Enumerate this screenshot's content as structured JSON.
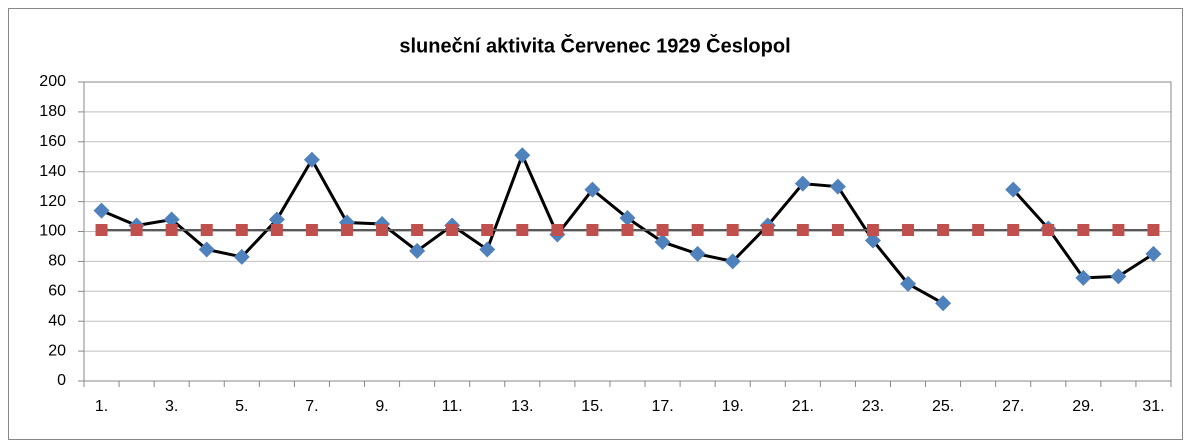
{
  "chart_data": {
    "type": "line",
    "title": "sluneční aktivita Červenec 1929 Česlopol",
    "categories": [
      "1.",
      null,
      "3.",
      null,
      "5.",
      null,
      "7.",
      null,
      "9.",
      null,
      "11.",
      null,
      "13.",
      null,
      "15.",
      null,
      "17.",
      null,
      "19.",
      null,
      "21.",
      null,
      "23.",
      null,
      "25.",
      null,
      "27.",
      null,
      "29.",
      null,
      "31."
    ],
    "series": [
      {
        "color": "#4f81bd",
        "line_color": "#000000",
        "marker": "diamond",
        "values": [
          114,
          104,
          108,
          88,
          83,
          108,
          148,
          106,
          105,
          87,
          104,
          88,
          151,
          98,
          128,
          109,
          93,
          85,
          80,
          104,
          132,
          130,
          94,
          65,
          52,
          null,
          128,
          102,
          69,
          70,
          85
        ]
      },
      {
        "color": "#c0504d",
        "line_color": "#595959",
        "marker": "square",
        "values": [
          101,
          101,
          101,
          101,
          101,
          101,
          101,
          101,
          101,
          101,
          101,
          101,
          101,
          101,
          101,
          101,
          101,
          101,
          101,
          101,
          101,
          101,
          101,
          101,
          101,
          101,
          101,
          101,
          101,
          101,
          101
        ]
      }
    ],
    "ylim": [
      0,
      200
    ],
    "yticks": [
      0,
      20,
      40,
      60,
      80,
      100,
      120,
      140,
      160,
      180,
      200
    ],
    "grid": true
  }
}
